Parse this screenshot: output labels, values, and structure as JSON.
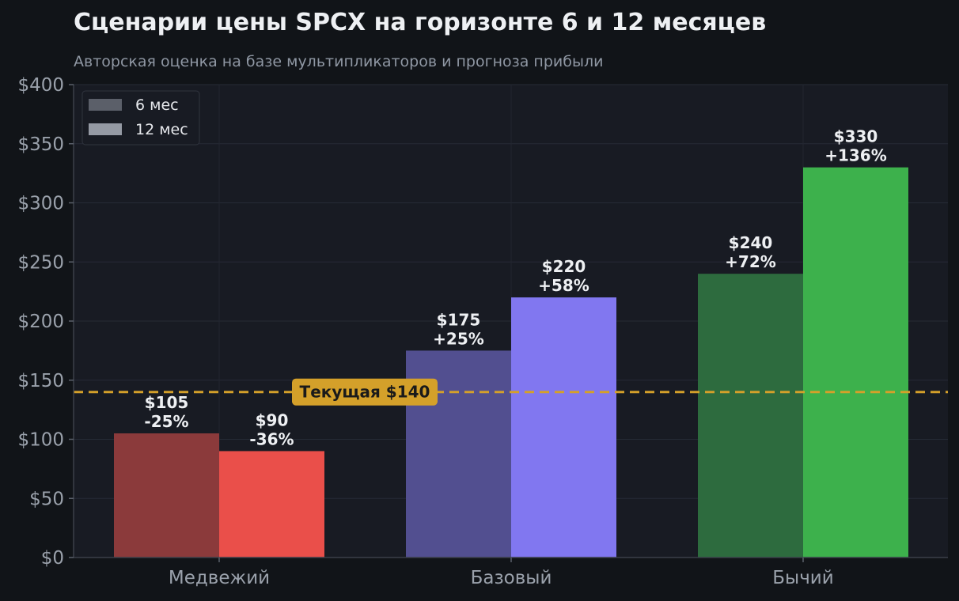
{
  "chart_data": {
    "type": "bar",
    "title": "Сценарии цены SPCX на горизонте 6 и 12 месяцев",
    "subtitle": "Авторская оценка на базе мультипликаторов и прогноза прибыли",
    "categories": [
      "Медвежий",
      "Базовый",
      "Бычий"
    ],
    "series": [
      {
        "name": "6 мес",
        "values": [
          105,
          175,
          240
        ],
        "labels": [
          "$105\n-25%",
          "$175\n+25%",
          "$240\n+72%"
        ],
        "colors": [
          "#8b3a3b",
          "#524f90",
          "#2d6b3e"
        ]
      },
      {
        "name": "12 мес",
        "values": [
          90,
          220,
          330
        ],
        "labels": [
          "$90\n-36%",
          "$220\n+58%",
          "$330\n+136%"
        ],
        "colors": [
          "#ea4f4a",
          "#8177f0",
          "#3db14c"
        ]
      }
    ],
    "ylim": [
      0,
      400
    ],
    "yticks": [
      0,
      50,
      100,
      150,
      200,
      250,
      300,
      350,
      400
    ],
    "ytick_labels": [
      "$0",
      "$50",
      "$100",
      "$150",
      "$200",
      "$250",
      "$300",
      "$350",
      "$400"
    ],
    "grid": true,
    "legend": {
      "placement": "top-left",
      "entries": [
        {
          "label": "6 мес",
          "color": "#5b5f69"
        },
        {
          "label": "12 мес",
          "color": "#959aa4"
        }
      ]
    },
    "reference_line": {
      "value": 140,
      "label": "Текущая $140",
      "color": "#d4a02a"
    }
  }
}
